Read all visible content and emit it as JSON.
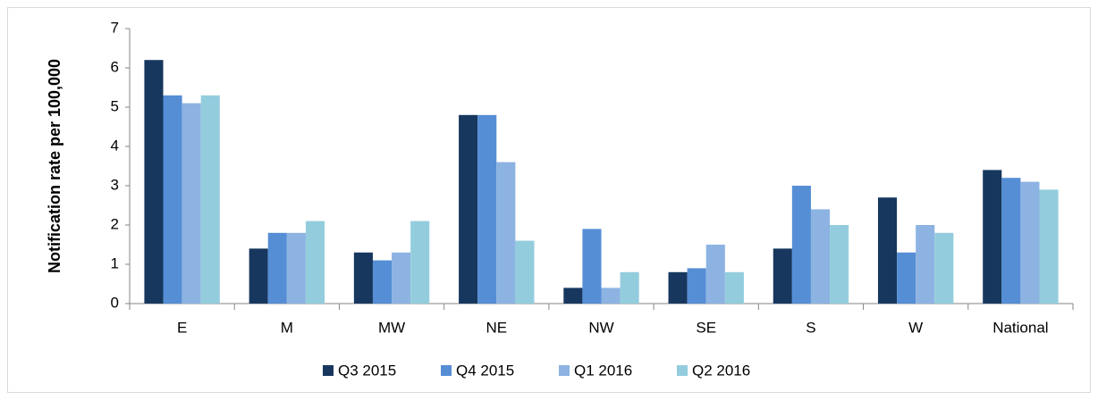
{
  "chart_data": {
    "type": "bar",
    "y_label": "Notification rate per 100,000",
    "categories": [
      "E",
      "M",
      "MW",
      "NE",
      "NW",
      "SE",
      "S",
      "W",
      "National"
    ],
    "series": [
      {
        "name": "Q3 2015",
        "color": "#17375e",
        "values": [
          6.2,
          1.4,
          1.3,
          4.8,
          0.4,
          0.8,
          1.4,
          2.7,
          3.4
        ]
      },
      {
        "name": "Q4 2015",
        "color": "#558ed5",
        "values": [
          5.3,
          1.8,
          1.1,
          4.8,
          1.9,
          0.9,
          3.0,
          1.3,
          3.2
        ]
      },
      {
        "name": "Q1 2016",
        "color": "#8db3e2",
        "values": [
          5.1,
          1.8,
          1.3,
          3.6,
          0.4,
          1.5,
          2.4,
          2.0,
          3.1
        ]
      },
      {
        "name": "Q2 2016",
        "color": "#93cddd",
        "values": [
          5.3,
          2.1,
          2.1,
          1.6,
          0.8,
          0.8,
          2.0,
          1.8,
          2.9
        ]
      }
    ],
    "ylim": [
      0,
      7
    ],
    "yticks": [
      0,
      1,
      2,
      3,
      4,
      5,
      6,
      7
    ],
    "grid": false,
    "legend": "bottom"
  }
}
